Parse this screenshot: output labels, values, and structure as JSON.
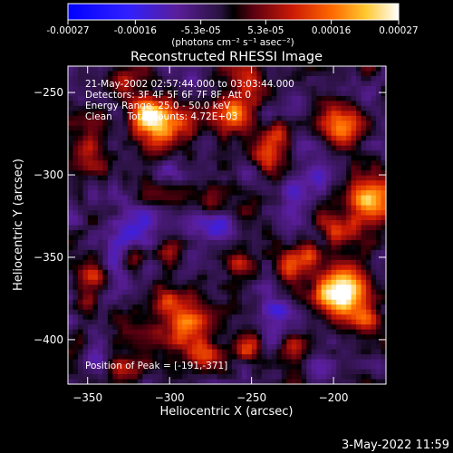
{
  "chart_data": {
    "type": "heatmap",
    "title": "Reconstructed RHESSI Image",
    "xlabel": "Heliocentric X (arcsec)",
    "ylabel": "Heliocentric Y (arcsec)",
    "xlim": [
      -362,
      -168
    ],
    "ylim": [
      -427,
      -234
    ],
    "xticks": [
      -350,
      -300,
      -250,
      -200
    ],
    "yticks": [
      -250,
      -300,
      -350,
      -400
    ],
    "colorbar": {
      "range": [
        -0.00027,
        0.00027
      ],
      "tick_values": [
        -0.00027,
        -0.00016,
        -5.3e-05,
        5.3e-05,
        0.00016,
        0.00027
      ],
      "tick_labels": [
        "-0.00027",
        "-0.00016",
        "-5.3e-05",
        "5.3e-05",
        "0.00016",
        "0.00027"
      ],
      "units_label": "(photons cm⁻² s⁻¹ asec⁻²)"
    },
    "annotations": [
      "21-May-2002 02:57:44.000 to 03:03:44.000",
      "Detectors: 3F 4F 5F 6F 7F 8F, Att 0",
      "Energy Range: 25.0 - 50.0 keV",
      "Clean     Total counts: 4.72E+03"
    ],
    "peak_label": "Position of Peak = [-191,-371]",
    "peak": {
      "x": -191,
      "y": -371
    },
    "grid": false,
    "hotspots": [
      {
        "x": -305,
        "y": -270,
        "r": 16,
        "v": 0.00022
      },
      {
        "x": -315,
        "y": -262,
        "r": 10,
        "v": 0.00016
      },
      {
        "x": -330,
        "y": -245,
        "r": 10,
        "v": 0.00014
      },
      {
        "x": -352,
        "y": -283,
        "r": 10,
        "v": 0.00015
      },
      {
        "x": -262,
        "y": -262,
        "r": 12,
        "v": 0.00018
      },
      {
        "x": -250,
        "y": -243,
        "r": 9,
        "v": 0.00012
      },
      {
        "x": -240,
        "y": -290,
        "r": 12,
        "v": 0.00017
      },
      {
        "x": -232,
        "y": -275,
        "r": 8,
        "v": 0.00012
      },
      {
        "x": -196,
        "y": -270,
        "r": 12,
        "v": 0.0002
      },
      {
        "x": -178,
        "y": -316,
        "r": 14,
        "v": 0.00024
      },
      {
        "x": -196,
        "y": -335,
        "r": 10,
        "v": 0.00017
      },
      {
        "x": -215,
        "y": -350,
        "r": 10,
        "v": 0.00018
      },
      {
        "x": -191,
        "y": -371,
        "r": 14,
        "v": 0.00027
      },
      {
        "x": -205,
        "y": -372,
        "r": 10,
        "v": 0.0002
      },
      {
        "x": -228,
        "y": -356,
        "r": 8,
        "v": 0.00015
      },
      {
        "x": -180,
        "y": -388,
        "r": 8,
        "v": 0.00015
      },
      {
        "x": -345,
        "y": -360,
        "r": 10,
        "v": 0.00018
      },
      {
        "x": -352,
        "y": -378,
        "r": 8,
        "v": 0.00012
      },
      {
        "x": -322,
        "y": -350,
        "r": 8,
        "v": 0.00012
      },
      {
        "x": -292,
        "y": -392,
        "r": 14,
        "v": 0.0002
      },
      {
        "x": -280,
        "y": -410,
        "r": 10,
        "v": 0.00018
      },
      {
        "x": -302,
        "y": -378,
        "r": 8,
        "v": 0.00012
      },
      {
        "x": -252,
        "y": -405,
        "r": 9,
        "v": 0.00015
      },
      {
        "x": -258,
        "y": -352,
        "r": 7,
        "v": 0.0001
      },
      {
        "x": -300,
        "y": -345,
        "r": 8,
        "v": 0.0001
      },
      {
        "x": -225,
        "y": -405,
        "r": 8,
        "v": 0.00012
      },
      {
        "x": -330,
        "y": -420,
        "r": 8,
        "v": 0.00012
      },
      {
        "x": -275,
        "y": -318,
        "r": 7,
        "v": 9e-05
      }
    ],
    "coldspots": [
      {
        "x": -325,
        "y": -335,
        "r": 14,
        "v": -0.00012
      },
      {
        "x": -335,
        "y": -355,
        "r": 10,
        "v": -0.0001
      },
      {
        "x": -270,
        "y": -330,
        "r": 10,
        "v": -9e-05
      },
      {
        "x": -250,
        "y": -300,
        "r": 10,
        "v": -8e-05
      },
      {
        "x": -280,
        "y": -280,
        "r": 8,
        "v": -8e-05
      },
      {
        "x": -225,
        "y": -310,
        "r": 8,
        "v": -8e-05
      },
      {
        "x": -210,
        "y": -300,
        "r": 8,
        "v": -9e-05
      },
      {
        "x": -232,
        "y": -382,
        "r": 8,
        "v": -8e-05
      },
      {
        "x": -345,
        "y": -412,
        "r": 8,
        "v": -8e-05
      },
      {
        "x": -300,
        "y": -298,
        "r": 8,
        "v": -7e-05
      }
    ]
  },
  "footer": {
    "timestamp": "3-May-2022 11:59"
  },
  "colors": {
    "background": "#000000",
    "foreground": "#ffffff"
  }
}
